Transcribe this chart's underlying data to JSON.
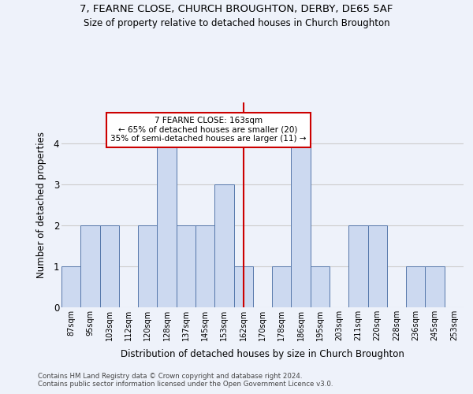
{
  "title": "7, FEARNE CLOSE, CHURCH BROUGHTON, DERBY, DE65 5AF",
  "subtitle": "Size of property relative to detached houses in Church Broughton",
  "xlabel": "Distribution of detached houses by size in Church Broughton",
  "ylabel": "Number of detached properties",
  "footer_line1": "Contains HM Land Registry data © Crown copyright and database right 2024.",
  "footer_line2": "Contains public sector information licensed under the Open Government Licence v3.0.",
  "bin_labels": [
    "87sqm",
    "95sqm",
    "103sqm",
    "112sqm",
    "120sqm",
    "128sqm",
    "137sqm",
    "145sqm",
    "153sqm",
    "162sqm",
    "170sqm",
    "178sqm",
    "186sqm",
    "195sqm",
    "203sqm",
    "211sqm",
    "220sqm",
    "228sqm",
    "236sqm",
    "245sqm",
    "253sqm"
  ],
  "bar_heights": [
    1,
    2,
    2,
    0,
    2,
    4,
    2,
    2,
    3,
    1,
    0,
    1,
    4,
    1,
    0,
    2,
    2,
    0,
    1,
    1,
    0
  ],
  "bar_color": "#ccd9f0",
  "bar_edge_color": "#5577aa",
  "grid_color": "#cccccc",
  "vline_x_index": 9,
  "vline_color": "#cc0000",
  "annotation_text": "7 FEARNE CLOSE: 163sqm\n← 65% of detached houses are smaller (20)\n35% of semi-detached houses are larger (11) →",
  "ylim": [
    0,
    5
  ],
  "yticks": [
    0,
    1,
    2,
    3,
    4
  ],
  "background_color": "#eef2fa",
  "title_fontsize": 9,
  "subtitle_fontsize": 8.5
}
